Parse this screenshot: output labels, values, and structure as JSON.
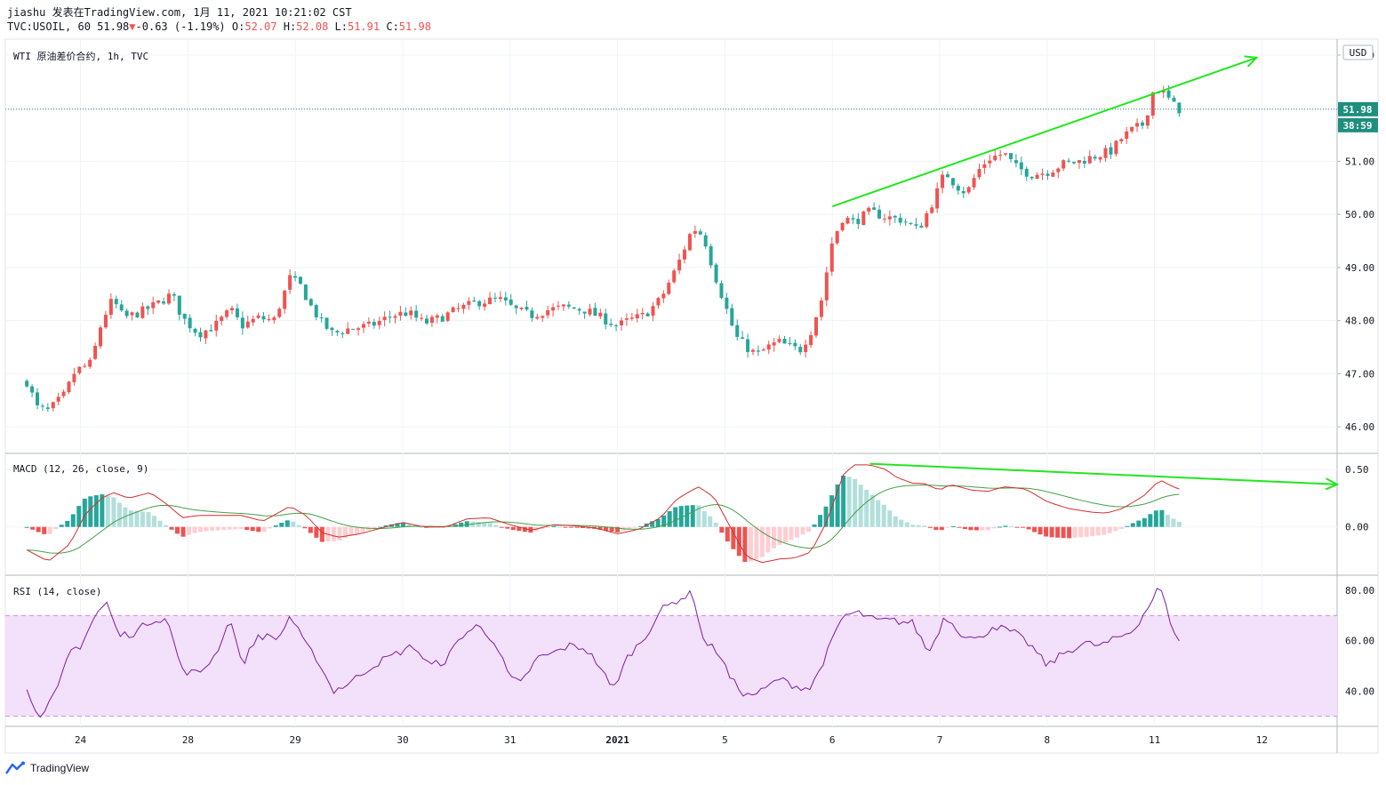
{
  "header": {
    "line1": "jiashu 发表在TradingView.com, 1月 11, 2021 10:21:02 CST",
    "symbol": "TVC:USOIL, 60",
    "last": "51.98",
    "arrow": "▼",
    "change": "-0.63 (-1.19%)",
    "o_label": "O:",
    "o": "52.07",
    "h_label": "H:",
    "h": "52.08",
    "l_label": "L:",
    "l": "51.91",
    "c_label": "C:",
    "c": "51.98"
  },
  "panes": {
    "main_title": "WTI 原油差价合约, 1h, TVC",
    "macd_title": "MACD (12, 26, close, 9)",
    "rsi_title": "RSI (14, close)"
  },
  "currency": "USD",
  "last_price_tag": "51.98",
  "countdown_tag": "38:59",
  "brand": "TradingView",
  "colors": {
    "up": "#ef5350",
    "down": "#26a69a",
    "macd_line": "#d32f2f",
    "signal_line": "#43a047",
    "hist_pos_strong": "#26a69a",
    "hist_pos_weak": "#b2dfdb",
    "hist_neg_strong": "#ef5350",
    "hist_neg_weak": "#ffcdd2",
    "rsi": "#7b1fa2",
    "rsi_band": "#f3e0fb",
    "trend": "#22e61e",
    "tag": "#1e8f7f"
  },
  "chart_data": {
    "type": "candlestick",
    "price_axis": {
      "ticks": [
        "53.00",
        "52.00",
        "51.00",
        "50.00",
        "49.00",
        "48.00",
        "47.00",
        "46.00"
      ],
      "range": [
        45.5,
        53.3
      ]
    },
    "macd_axis": {
      "ticks": [
        "0.50",
        "0.00"
      ],
      "range": [
        -0.42,
        0.64
      ]
    },
    "rsi_axis": {
      "ticks": [
        "80.00",
        "60.00",
        "40.00"
      ],
      "range": [
        26,
        86
      ],
      "band": [
        30,
        70
      ]
    },
    "x_labels": [
      {
        "label": "24",
        "x": 0.5
      },
      {
        "label": "28",
        "x": 1.5
      },
      {
        "label": "29",
        "x": 2.5
      },
      {
        "label": "30",
        "x": 3.5
      },
      {
        "label": "31",
        "x": 4.5
      },
      {
        "label": "2021",
        "x": 5.5
      },
      {
        "label": "5",
        "x": 6.5
      },
      {
        "label": "6",
        "x": 7.5
      },
      {
        "label": "7",
        "x": 8.5
      },
      {
        "label": "8",
        "x": 9.5
      },
      {
        "label": "11",
        "x": 10.5
      },
      {
        "label": "12",
        "x": 11.5
      }
    ],
    "x_range": [
      -0.2,
      12.2
    ],
    "price_keys": [
      [
        0.0,
        46.85
      ],
      [
        0.1,
        46.35
      ],
      [
        0.2,
        46.3
      ],
      [
        0.35,
        46.6
      ],
      [
        0.45,
        47.05
      ],
      [
        0.6,
        47.2
      ],
      [
        0.7,
        48.0
      ],
      [
        0.8,
        48.4
      ],
      [
        0.9,
        48.05
      ],
      [
        1.05,
        48.15
      ],
      [
        1.2,
        48.3
      ],
      [
        1.35,
        48.5
      ],
      [
        1.45,
        48.05
      ],
      [
        1.6,
        47.75
      ],
      [
        1.75,
        47.9
      ],
      [
        1.9,
        48.2
      ],
      [
        2.0,
        47.9
      ],
      [
        2.15,
        48.05
      ],
      [
        2.3,
        48.0
      ],
      [
        2.45,
        48.8
      ],
      [
        2.55,
        48.65
      ],
      [
        2.65,
        48.25
      ],
      [
        2.75,
        47.95
      ],
      [
        2.85,
        47.75
      ],
      [
        3.0,
        47.85
      ],
      [
        3.2,
        47.9
      ],
      [
        3.4,
        48.1
      ],
      [
        3.55,
        48.15
      ],
      [
        3.7,
        47.95
      ],
      [
        3.85,
        48.05
      ],
      [
        4.0,
        48.2
      ],
      [
        4.2,
        48.35
      ],
      [
        4.4,
        48.4
      ],
      [
        4.55,
        48.2
      ],
      [
        4.7,
        48.1
      ],
      [
        4.85,
        48.2
      ],
      [
        5.0,
        48.25
      ],
      [
        5.2,
        48.2
      ],
      [
        5.35,
        48.05
      ],
      [
        5.5,
        47.9
      ],
      [
        5.6,
        48.0
      ],
      [
        5.75,
        48.1
      ],
      [
        5.9,
        48.4
      ],
      [
        6.05,
        49.0
      ],
      [
        6.2,
        49.75
      ],
      [
        6.3,
        49.6
      ],
      [
        6.4,
        48.9
      ],
      [
        6.5,
        48.3
      ],
      [
        6.6,
        47.7
      ],
      [
        6.7,
        47.5
      ],
      [
        6.8,
        47.35
      ],
      [
        6.9,
        47.5
      ],
      [
        7.0,
        47.6
      ],
      [
        7.1,
        47.5
      ],
      [
        7.2,
        47.45
      ],
      [
        7.3,
        47.8
      ],
      [
        7.4,
        48.4
      ],
      [
        7.5,
        49.5
      ],
      [
        7.6,
        49.95
      ],
      [
        7.7,
        49.85
      ],
      [
        7.85,
        50.05
      ],
      [
        8.0,
        49.95
      ],
      [
        8.15,
        49.9
      ],
      [
        8.3,
        49.7
      ],
      [
        8.45,
        50.3
      ],
      [
        8.55,
        50.8
      ],
      [
        8.65,
        50.55
      ],
      [
        8.75,
        50.4
      ],
      [
        8.85,
        50.8
      ],
      [
        8.95,
        51.05
      ],
      [
        9.1,
        51.15
      ],
      [
        9.2,
        50.9
      ],
      [
        9.35,
        50.75
      ],
      [
        9.5,
        50.8
      ],
      [
        9.65,
        50.95
      ],
      [
        9.8,
        51.0
      ],
      [
        9.95,
        51.1
      ],
      [
        10.1,
        51.2
      ],
      [
        10.2,
        51.45
      ],
      [
        10.3,
        51.6
      ],
      [
        10.4,
        51.7
      ],
      [
        10.5,
        52.4
      ],
      [
        10.6,
        52.25
      ],
      [
        10.7,
        52.0
      ],
      [
        10.73,
        51.98
      ]
    ],
    "macd_keys": [
      [
        0.0,
        -0.2
      ],
      [
        0.2,
        -0.3
      ],
      [
        0.4,
        -0.15
      ],
      [
        0.55,
        0.12
      ],
      [
        0.7,
        0.25
      ],
      [
        0.8,
        0.3
      ],
      [
        0.95,
        0.25
      ],
      [
        1.15,
        0.3
      ],
      [
        1.3,
        0.2
      ],
      [
        1.45,
        0.08
      ],
      [
        1.6,
        0.1
      ],
      [
        1.8,
        0.1
      ],
      [
        2.0,
        0.1
      ],
      [
        2.2,
        0.05
      ],
      [
        2.45,
        0.18
      ],
      [
        2.6,
        0.1
      ],
      [
        2.75,
        -0.05
      ],
      [
        2.9,
        -0.09
      ],
      [
        3.1,
        -0.06
      ],
      [
        3.3,
        -0.01
      ],
      [
        3.5,
        0.04
      ],
      [
        3.7,
        0.0
      ],
      [
        3.9,
        0.0
      ],
      [
        4.1,
        0.07
      ],
      [
        4.3,
        0.08
      ],
      [
        4.5,
        0.02
      ],
      [
        4.7,
        -0.03
      ],
      [
        4.9,
        0.02
      ],
      [
        5.1,
        0.01
      ],
      [
        5.3,
        -0.01
      ],
      [
        5.5,
        -0.06
      ],
      [
        5.7,
        -0.02
      ],
      [
        5.9,
        0.08
      ],
      [
        6.05,
        0.24
      ],
      [
        6.25,
        0.35
      ],
      [
        6.4,
        0.26
      ],
      [
        6.55,
        0.0
      ],
      [
        6.7,
        -0.26
      ],
      [
        6.85,
        -0.31
      ],
      [
        7.0,
        -0.28
      ],
      [
        7.15,
        -0.27
      ],
      [
        7.3,
        -0.22
      ],
      [
        7.45,
        0.05
      ],
      [
        7.6,
        0.45
      ],
      [
        7.7,
        0.54
      ],
      [
        7.85,
        0.54
      ],
      [
        8.0,
        0.5
      ],
      [
        8.1,
        0.43
      ],
      [
        8.25,
        0.38
      ],
      [
        8.35,
        0.38
      ],
      [
        8.5,
        0.32
      ],
      [
        8.6,
        0.37
      ],
      [
        8.8,
        0.32
      ],
      [
        8.95,
        0.31
      ],
      [
        9.1,
        0.35
      ],
      [
        9.3,
        0.33
      ],
      [
        9.5,
        0.22
      ],
      [
        9.7,
        0.16
      ],
      [
        9.9,
        0.13
      ],
      [
        10.05,
        0.12
      ],
      [
        10.2,
        0.16
      ],
      [
        10.4,
        0.27
      ],
      [
        10.55,
        0.41
      ],
      [
        10.65,
        0.36
      ],
      [
        10.73,
        0.33
      ]
    ],
    "rsi_keys": [
      [
        0.0,
        40
      ],
      [
        0.1,
        32
      ],
      [
        0.15,
        30
      ],
      [
        0.3,
        42
      ],
      [
        0.4,
        56
      ],
      [
        0.5,
        58
      ],
      [
        0.65,
        71
      ],
      [
        0.75,
        75
      ],
      [
        0.85,
        62
      ],
      [
        1.0,
        63
      ],
      [
        1.15,
        68
      ],
      [
        1.3,
        69
      ],
      [
        1.45,
        48
      ],
      [
        1.6,
        47
      ],
      [
        1.75,
        54
      ],
      [
        1.9,
        69
      ],
      [
        2.0,
        50
      ],
      [
        2.15,
        62
      ],
      [
        2.35,
        61
      ],
      [
        2.45,
        70
      ],
      [
        2.6,
        58
      ],
      [
        2.7,
        53
      ],
      [
        2.85,
        40
      ],
      [
        3.0,
        43
      ],
      [
        3.15,
        48
      ],
      [
        3.3,
        52
      ],
      [
        3.45,
        55
      ],
      [
        3.6,
        58
      ],
      [
        3.75,
        50
      ],
      [
        3.9,
        52
      ],
      [
        4.05,
        62
      ],
      [
        4.2,
        66
      ],
      [
        4.35,
        60
      ],
      [
        4.5,
        45
      ],
      [
        4.6,
        43
      ],
      [
        4.75,
        53
      ],
      [
        4.9,
        55
      ],
      [
        5.05,
        58
      ],
      [
        5.2,
        57
      ],
      [
        5.35,
        49
      ],
      [
        5.45,
        40
      ],
      [
        5.6,
        54
      ],
      [
        5.75,
        61
      ],
      [
        5.9,
        72
      ],
      [
        6.05,
        76
      ],
      [
        6.2,
        79
      ],
      [
        6.3,
        60
      ],
      [
        6.45,
        55
      ],
      [
        6.55,
        45
      ],
      [
        6.7,
        38
      ],
      [
        6.85,
        40
      ],
      [
        7.0,
        45
      ],
      [
        7.15,
        42
      ],
      [
        7.3,
        41
      ],
      [
        7.45,
        55
      ],
      [
        7.6,
        70
      ],
      [
        7.75,
        71
      ],
      [
        7.9,
        68
      ],
      [
        8.05,
        68
      ],
      [
        8.25,
        67
      ],
      [
        8.4,
        55
      ],
      [
        8.55,
        70
      ],
      [
        8.7,
        63
      ],
      [
        8.85,
        60
      ],
      [
        9.0,
        66
      ],
      [
        9.2,
        63
      ],
      [
        9.35,
        58
      ],
      [
        9.5,
        50
      ],
      [
        9.65,
        55
      ],
      [
        9.85,
        59
      ],
      [
        10.0,
        58
      ],
      [
        10.15,
        61
      ],
      [
        10.3,
        64
      ],
      [
        10.45,
        74
      ],
      [
        10.55,
        82
      ],
      [
        10.62,
        71
      ],
      [
        10.73,
        59
      ]
    ],
    "trendlines": [
      {
        "pane": "price",
        "from": [
          7.5,
          50.15
        ],
        "to": [
          11.45,
          52.95
        ],
        "arrow": true
      },
      {
        "pane": "macd",
        "from": [
          7.85,
          0.55
        ],
        "to": [
          12.2,
          0.37
        ],
        "arrow": true
      }
    ]
  }
}
